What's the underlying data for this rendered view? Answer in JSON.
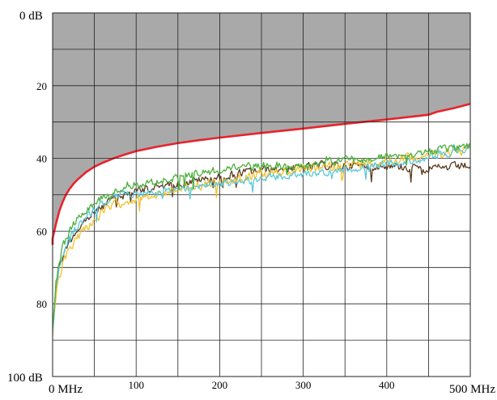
{
  "chart_data": {
    "type": "line",
    "title": "",
    "xlabel": "",
    "ylabel": "",
    "xlim": [
      0,
      500
    ],
    "ylim": [
      0,
      100
    ],
    "y_inverted": true,
    "grid": true,
    "x_ticks": [
      {
        "value": 0,
        "label": "0 MHz"
      },
      {
        "value": 100,
        "label": "100"
      },
      {
        "value": 200,
        "label": "200"
      },
      {
        "value": 300,
        "label": "300"
      },
      {
        "value": 400,
        "label": "400"
      },
      {
        "value": 500,
        "label": "500 MHz"
      }
    ],
    "y_ticks": [
      {
        "value": 0,
        "label": "0 dB"
      },
      {
        "value": 20,
        "label": "20"
      },
      {
        "value": 40,
        "label": "40"
      },
      {
        "value": 60,
        "label": "60"
      },
      {
        "value": 80,
        "label": "80"
      },
      {
        "value": 100,
        "label": "100 dB"
      }
    ],
    "limit": {
      "color": "#e8232b",
      "fill": "#a9a9a9",
      "x": [
        0,
        4,
        8,
        12,
        16,
        20,
        25,
        30,
        40,
        50,
        60,
        75,
        90,
        100,
        125,
        150,
        175,
        200,
        250,
        300,
        350,
        400,
        450,
        460,
        480,
        500
      ],
      "y": [
        62,
        58,
        54.5,
        52,
        50,
        48.5,
        47,
        45.8,
        43.8,
        42.3,
        41.2,
        39.8,
        38.7,
        38,
        36.8,
        35.8,
        35,
        34.3,
        33,
        31.8,
        30.5,
        29.3,
        28,
        27.2,
        26.2,
        25
      ]
    },
    "series": [
      {
        "color": "#5a3a1e",
        "x": [
          0,
          4,
          8,
          12,
          16,
          20,
          25,
          30,
          40,
          50,
          60,
          75,
          90,
          100,
          125,
          150,
          175,
          200,
          225,
          250,
          275,
          300,
          325,
          350,
          375,
          400,
          425,
          450,
          475,
          500
        ],
        "y": [
          85,
          75,
          70,
          67,
          64.5,
          63,
          61,
          59.5,
          57,
          55,
          53,
          51,
          49.8,
          49,
          48,
          47,
          46,
          45.2,
          44,
          43.3,
          42.8,
          42.5,
          42,
          42,
          42,
          42,
          42.5,
          43,
          42.5,
          42
        ],
        "noise": 1.6
      },
      {
        "color": "#f2c12e",
        "x": [
          0,
          4,
          8,
          12,
          16,
          20,
          25,
          30,
          40,
          50,
          60,
          75,
          90,
          100,
          125,
          150,
          175,
          200,
          225,
          250,
          275,
          300,
          325,
          350,
          375,
          400,
          425,
          450,
          475,
          500
        ],
        "y": [
          89,
          78,
          73,
          69.5,
          67,
          65,
          63,
          61.5,
          59,
          57,
          55,
          52.5,
          51.5,
          51,
          50,
          48.5,
          47.5,
          46.5,
          45.5,
          44.5,
          43.8,
          43,
          42.5,
          42,
          41.2,
          40.5,
          39.8,
          39,
          38.2,
          37.5
        ],
        "noise": 1.8
      },
      {
        "color": "#5bc8d8",
        "x": [
          0,
          4,
          8,
          12,
          16,
          20,
          25,
          30,
          40,
          50,
          60,
          75,
          90,
          100,
          125,
          150,
          175,
          200,
          225,
          250,
          275,
          300,
          325,
          350,
          375,
          400,
          425,
          450,
          475,
          500
        ],
        "y": [
          88,
          76,
          70,
          66.5,
          64,
          62,
          60,
          58.5,
          56,
          54,
          52.5,
          50.5,
          49.5,
          49.5,
          49.5,
          48.5,
          47.5,
          47,
          46.5,
          45.5,
          45,
          44.5,
          43.8,
          43,
          42.3,
          41.5,
          40.8,
          40,
          38.5,
          37
        ],
        "noise": 1.4
      },
      {
        "color": "#4caf3c",
        "x": [
          0,
          4,
          8,
          12,
          16,
          20,
          25,
          30,
          40,
          50,
          60,
          75,
          90,
          100,
          125,
          150,
          175,
          200,
          225,
          250,
          275,
          300,
          325,
          350,
          375,
          400,
          425,
          450,
          475,
          500
        ],
        "y": [
          86,
          74,
          68,
          64.5,
          62,
          60,
          58,
          56.5,
          54,
          52,
          50.5,
          48.5,
          47.2,
          47,
          46.5,
          45.2,
          44,
          43.3,
          42.5,
          42,
          41.8,
          41.5,
          41,
          40.5,
          40,
          39.5,
          39,
          38.2,
          37.5,
          36.5
        ],
        "noise": 1.5
      }
    ]
  }
}
